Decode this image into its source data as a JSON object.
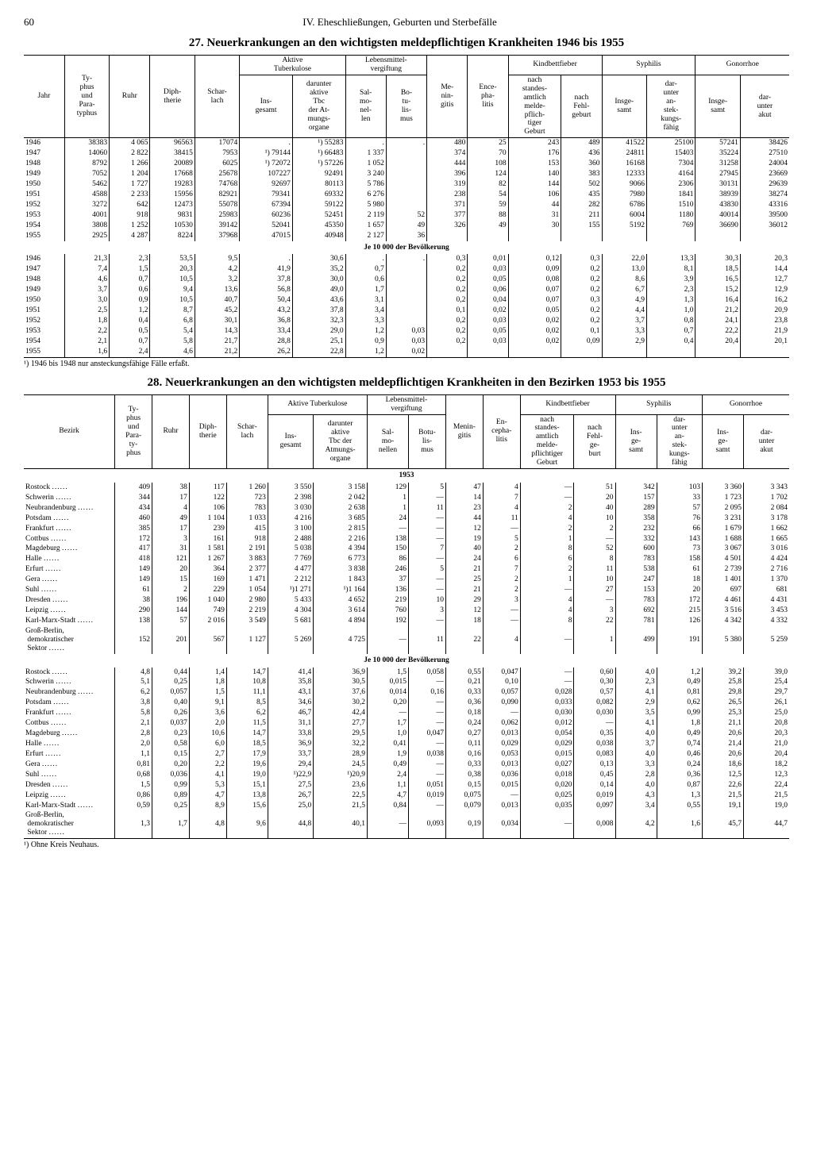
{
  "page_number": "60",
  "chapter": "IV. Eheschließungen, Geburten und Sterbefälle",
  "table27": {
    "title": "27. Neuerkrankungen an den wichtigsten meldepflichtigen Krankheiten 1946 bis 1955",
    "headers": {
      "jahr": "Jahr",
      "typhus": "Ty-\nphus\nund\nPara-\ntyphus",
      "ruhr": "Ruhr",
      "diph": "Diph-\ntherie",
      "schar": "Schar-\nlach",
      "tb_group": "Aktive\nTuberkulose",
      "tb_ins": "Ins-\ngesamt",
      "tb_dar": "darunter\naktive\nTbc\nder At-\nmungs-\norgane",
      "leb_group": "Lebensmittel-\nvergiftung",
      "salmo": "Sal-\nmo-\nnel-\nlen",
      "botu": "Bo-\ntu-\nlis-\nmus",
      "menin": "Me-\nnin-\ngitis",
      "ence": "Ence-\npha-\nlitis",
      "kind_group": "Kindbettfieber",
      "kind_nach": "nach\nstandes-\namtlich\nmelde-\npflich-\ntiger\nGeburt",
      "kind_fehl": "nach\nFehl-\ngeburt",
      "syph_group": "Syphilis",
      "syph_ins": "Insge-\nsamt",
      "syph_dar": "dar-\nunter\nan-\nstek-\nkungs-\nfähig",
      "gon_group": "Gonorrhoe",
      "gon_ins": "Insge-\nsamt",
      "gon_dar": "dar-\nunter\nakut"
    },
    "section_label": "Je 10 000 der Bevölkerung",
    "years": [
      "1946",
      "1947",
      "1948",
      "1949",
      "1950",
      "1951",
      "1952",
      "1953",
      "1954",
      "1955"
    ],
    "abs": [
      [
        "38383",
        "4 065",
        "96563",
        "17074",
        ".",
        "¹) 55283",
        ".",
        ".",
        "480",
        "25",
        "243",
        "489",
        "41522",
        "25100",
        "57241",
        "38426"
      ],
      [
        "14060",
        "2 822",
        "38415",
        "7953",
        "¹) 79144",
        "¹) 66483",
        "1 337",
        "",
        "374",
        "70",
        "176",
        "436",
        "24811",
        "15403",
        "35224",
        "27510"
      ],
      [
        "8792",
        "1 266",
        "20089",
        "6025",
        "¹) 72072",
        "¹) 57226",
        "1 052",
        "",
        "444",
        "108",
        "153",
        "360",
        "16168",
        "7304",
        "31258",
        "24004"
      ],
      [
        "7052",
        "1 204",
        "17668",
        "25678",
        "107227",
        "92491",
        "3 240",
        "",
        "396",
        "124",
        "140",
        "383",
        "12333",
        "4164",
        "27945",
        "23669"
      ],
      [
        "5462",
        "1 727",
        "19283",
        "74768",
        "92697",
        "80113",
        "5 786",
        "",
        "319",
        "82",
        "144",
        "502",
        "9066",
        "2306",
        "30131",
        "29639"
      ],
      [
        "4588",
        "2 233",
        "15956",
        "82921",
        "79341",
        "69332",
        "6 276",
        "",
        "238",
        "54",
        "106",
        "435",
        "7980",
        "1841",
        "38939",
        "38274"
      ],
      [
        "3272",
        "642",
        "12473",
        "55078",
        "67394",
        "59122",
        "5 980",
        "",
        "371",
        "59",
        "44",
        "282",
        "6786",
        "1510",
        "43830",
        "43316"
      ],
      [
        "4001",
        "918",
        "9831",
        "25983",
        "60236",
        "52451",
        "2 119",
        "52",
        "377",
        "88",
        "31",
        "211",
        "6004",
        "1180",
        "40014",
        "39500"
      ],
      [
        "3808",
        "1 252",
        "10530",
        "39142",
        "52041",
        "45350",
        "1 657",
        "49",
        "326",
        "49",
        "30",
        "155",
        "5192",
        "769",
        "36690",
        "36012"
      ],
      [
        "2925",
        "4 287",
        "8224",
        "37968",
        "47015",
        "40948",
        "2 127",
        "36",
        "",
        "",
        "",
        "",
        "",
        "",
        "",
        ""
      ]
    ],
    "rel": [
      [
        "21,3",
        "2,3",
        "53,5",
        "9,5",
        ".",
        "30,6",
        ".",
        ".",
        "0,3",
        "0,01",
        "0,12",
        "0,3",
        "22,0",
        "13,3",
        "30,3",
        "20,3"
      ],
      [
        "7,4",
        "1,5",
        "20,3",
        "4,2",
        "41,9",
        "35,2",
        "0,7",
        "",
        "0,2",
        "0,03",
        "0,09",
        "0,2",
        "13,0",
        "8,1",
        "18,5",
        "14,4"
      ],
      [
        "4,6",
        "0,7",
        "10,5",
        "3,2",
        "37,8",
        "30,0",
        "0,6",
        "",
        "0,2",
        "0,05",
        "0,08",
        "0,2",
        "8,6",
        "3,9",
        "16,5",
        "12,7"
      ],
      [
        "3,7",
        "0,6",
        "9,4",
        "13,6",
        "56,8",
        "49,0",
        "1,7",
        "",
        "0,2",
        "0,06",
        "0,07",
        "0,2",
        "6,7",
        "2,3",
        "15,2",
        "12,9"
      ],
      [
        "3,0",
        "0,9",
        "10,5",
        "40,7",
        "50,4",
        "43,6",
        "3,1",
        "",
        "0,2",
        "0,04",
        "0,07",
        "0,3",
        "4,9",
        "1,3",
        "16,4",
        "16,2"
      ],
      [
        "2,5",
        "1,2",
        "8,7",
        "45,2",
        "43,2",
        "37,8",
        "3,4",
        "",
        "0,1",
        "0,02",
        "0,05",
        "0,2",
        "4,4",
        "1,0",
        "21,2",
        "20,9"
      ],
      [
        "1,8",
        "0,4",
        "6,8",
        "30,1",
        "36,8",
        "32,3",
        "3,3",
        "",
        "0,2",
        "0,03",
        "0,02",
        "0,2",
        "3,7",
        "0,8",
        "24,1",
        "23,8"
      ],
      [
        "2,2",
        "0,5",
        "5,4",
        "14,3",
        "33,4",
        "29,0",
        "1,2",
        "0,03",
        "0,2",
        "0,05",
        "0,02",
        "0,1",
        "3,3",
        "0,7",
        "22,2",
        "21,9"
      ],
      [
        "2,1",
        "0,7",
        "5,8",
        "21,7",
        "28,8",
        "25,1",
        "0,9",
        "0,03",
        "0,2",
        "0,03",
        "0,02",
        "0,09",
        "2,9",
        "0,4",
        "20,4",
        "20,1"
      ],
      [
        "1,6",
        "2,4",
        "4,6",
        "21,2",
        "26,2",
        "22,8",
        "1,2",
        "0,02",
        "",
        "",
        "",
        "",
        "",
        "",
        "",
        ""
      ]
    ],
    "footnote": "¹) 1946 bis 1948 nur ansteckungsfähige Fälle erfaßt."
  },
  "table28": {
    "title": "28. Neuerkrankungen an den wichtigsten meldepflichtigen Krankheiten in den Bezirken 1953 bis 1955",
    "headers": {
      "bezirk": "Bezirk",
      "typhus": "Ty-\nphus\nund\nPara-\nty-\nphus",
      "ruhr": "Ruhr",
      "diph": "Diph-\ntherie",
      "schar": "Schar-\nlach",
      "tb_group": "Aktive Tuberkulose",
      "tb_ins": "Ins-\ngesamt",
      "tb_dar": "darunter\naktive\nTbc der\nAtmungs-\norgane",
      "leb_group": "Lebensmittel-\nvergiftung",
      "salmo": "Sal-\nmo-\nnellen",
      "botu": "Botu-\nlis-\nmus",
      "menin": "Menin-\ngitis",
      "ence": "En-\ncepha-\nlitis",
      "kind_group": "Kindbettfieber",
      "kind_nach": "nach\nstandes-\namtlich\nmelde-\npflichtiger\nGeburt",
      "kind_fehl": "nach\nFehl-\nge-\nburt",
      "syph_group": "Syphilis",
      "syph_ins": "Ins-\nge-\nsamt",
      "syph_dar": "dar-\nunter\nan-\nstek-\nkungs-\nfähig",
      "gon_group": "Gonorrhoe",
      "gon_ins": "Ins-\nge-\nsamt",
      "gon_dar": "dar-\nunter\nakut"
    },
    "year_label": "1953",
    "section_label": "Je 10 000 der Bevölkerung",
    "districts": [
      "Rostock",
      "Schwerin",
      "Neubrandenburg",
      "Potsdam",
      "Frankfurt",
      "Cottbus",
      "Magdeburg",
      "Halle",
      "Erfurt",
      "Gera",
      "Suhl",
      "Dresden",
      "Leipzig",
      "Karl-Marx-Stadt",
      "Groß-Berlin, demokratischer Sektor"
    ],
    "abs": [
      [
        "409",
        "38",
        "117",
        "1 260",
        "3 550",
        "3 158",
        "129",
        "5",
        "47",
        "4",
        "—",
        "51",
        "342",
        "103",
        "3 360",
        "3 343"
      ],
      [
        "344",
        "17",
        "122",
        "723",
        "2 398",
        "2 042",
        "1",
        "—",
        "14",
        "7",
        "—",
        "20",
        "157",
        "33",
        "1 723",
        "1 702"
      ],
      [
        "434",
        "4",
        "106",
        "783",
        "3 030",
        "2 638",
        "1",
        "11",
        "23",
        "4",
        "2",
        "40",
        "289",
        "57",
        "2 095",
        "2 084"
      ],
      [
        "460",
        "49",
        "1 104",
        "1 033",
        "4 216",
        "3 685",
        "24",
        "—",
        "44",
        "11",
        "4",
        "10",
        "358",
        "76",
        "3 231",
        "3 178"
      ],
      [
        "385",
        "17",
        "239",
        "415",
        "3 100",
        "2 815",
        "—",
        "—",
        "12",
        "—",
        "2",
        "2",
        "232",
        "66",
        "1 679",
        "1 662"
      ],
      [
        "172",
        "3",
        "161",
        "918",
        "2 488",
        "2 216",
        "138",
        "—",
        "19",
        "5",
        "1",
        "—",
        "332",
        "143",
        "1 688",
        "1 665"
      ],
      [
        "417",
        "31",
        "1 581",
        "2 191",
        "5 038",
        "4 394",
        "150",
        "7",
        "40",
        "2",
        "8",
        "52",
        "600",
        "73",
        "3 067",
        "3 016"
      ],
      [
        "418",
        "121",
        "1 267",
        "3 883",
        "7 769",
        "6 773",
        "86",
        "—",
        "24",
        "6",
        "6",
        "8",
        "783",
        "158",
        "4 501",
        "4 424"
      ],
      [
        "149",
        "20",
        "364",
        "2 377",
        "4 477",
        "3 838",
        "246",
        "5",
        "21",
        "7",
        "2",
        "11",
        "538",
        "61",
        "2 739",
        "2 716"
      ],
      [
        "149",
        "15",
        "169",
        "1 471",
        "2 212",
        "1 843",
        "37",
        "—",
        "25",
        "2",
        "1",
        "10",
        "247",
        "18",
        "1 401",
        "1 370"
      ],
      [
        "61",
        "2",
        "229",
        "1 054",
        "¹)1 271",
        "¹)1 164",
        "136",
        "—",
        "21",
        "2",
        "—",
        "27",
        "153",
        "20",
        "697",
        "681"
      ],
      [
        "38",
        "196",
        "1 040",
        "2 980",
        "5 433",
        "4 652",
        "219",
        "10",
        "29",
        "3",
        "4",
        "—",
        "783",
        "172",
        "4 461",
        "4 431"
      ],
      [
        "290",
        "144",
        "749",
        "2 219",
        "4 304",
        "3 614",
        "760",
        "3",
        "12",
        "—",
        "4",
        "3",
        "692",
        "215",
        "3 516",
        "3 453"
      ],
      [
        "138",
        "57",
        "2 016",
        "3 549",
        "5 681",
        "4 894",
        "192",
        "—",
        "18",
        "—",
        "8",
        "22",
        "781",
        "126",
        "4 342",
        "4 332"
      ],
      [
        "152",
        "201",
        "567",
        "1 127",
        "5 269",
        "4 725",
        "—",
        "11",
        "22",
        "4",
        "—",
        "1",
        "499",
        "191",
        "5 380",
        "5 259"
      ]
    ],
    "rel": [
      [
        "4,8",
        "0,44",
        "1,4",
        "14,7",
        "41,4",
        "36,9",
        "1,5",
        "0,058",
        "0,55",
        "0,047",
        "—",
        "0,60",
        "4,0",
        "1,2",
        "39,2",
        "39,0"
      ],
      [
        "5,1",
        "0,25",
        "1,8",
        "10,8",
        "35,8",
        "30,5",
        "0,015",
        "—",
        "0,21",
        "0,10",
        "—",
        "0,30",
        "2,3",
        "0,49",
        "25,8",
        "25,4"
      ],
      [
        "6,2",
        "0,057",
        "1,5",
        "11,1",
        "43,1",
        "37,6",
        "0,014",
        "0,16",
        "0,33",
        "0,057",
        "0,028",
        "0,57",
        "4,1",
        "0,81",
        "29,8",
        "29,7"
      ],
      [
        "3,8",
        "0,40",
        "9,1",
        "8,5",
        "34,6",
        "30,2",
        "0,20",
        "—",
        "0,36",
        "0,090",
        "0,033",
        "0,082",
        "2,9",
        "0,62",
        "26,5",
        "26,1"
      ],
      [
        "5,8",
        "0,26",
        "3,6",
        "6,2",
        "46,7",
        "42,4",
        "—",
        "—",
        "0,18",
        "—",
        "0,030",
        "0,030",
        "3,5",
        "0,99",
        "25,3",
        "25,0"
      ],
      [
        "2,1",
        "0,037",
        "2,0",
        "11,5",
        "31,1",
        "27,7",
        "1,7",
        "—",
        "0,24",
        "0,062",
        "0,012",
        "—",
        "4,1",
        "1,8",
        "21,1",
        "20,8"
      ],
      [
        "2,8",
        "0,23",
        "10,6",
        "14,7",
        "33,8",
        "29,5",
        "1,0",
        "0,047",
        "0,27",
        "0,013",
        "0,054",
        "0,35",
        "4,0",
        "0,49",
        "20,6",
        "20,3"
      ],
      [
        "2,0",
        "0,58",
        "6,0",
        "18,5",
        "36,9",
        "32,2",
        "0,41",
        "—",
        "0,11",
        "0,029",
        "0,029",
        "0,038",
        "3,7",
        "0,74",
        "21,4",
        "21,0"
      ],
      [
        "1,1",
        "0,15",
        "2,7",
        "17,9",
        "33,7",
        "28,9",
        "1,9",
        "0,038",
        "0,16",
        "0,053",
        "0,015",
        "0,083",
        "4,0",
        "0,46",
        "20,6",
        "20,4"
      ],
      [
        "0,81",
        "0,20",
        "2,2",
        "19,6",
        "29,4",
        "24,5",
        "0,49",
        "—",
        "0,33",
        "0,013",
        "0,027",
        "0,13",
        "3,3",
        "0,24",
        "18,6",
        "18,2"
      ],
      [
        "0,68",
        "0,036",
        "4,1",
        "19,0",
        "¹)22,9",
        "¹)20,9",
        "2,4",
        "—",
        "0,38",
        "0,036",
        "0,018",
        "0,45",
        "2,8",
        "0,36",
        "12,5",
        "12,3"
      ],
      [
        "1,5",
        "0,99",
        "5,3",
        "15,1",
        "27,5",
        "23,6",
        "1,1",
        "0,051",
        "0,15",
        "0,015",
        "0,020",
        "0,14",
        "4,0",
        "0,87",
        "22,6",
        "22,4"
      ],
      [
        "0,86",
        "0,89",
        "4,7",
        "13,8",
        "26,7",
        "22,5",
        "4,7",
        "0,019",
        "0,075",
        "—",
        "0,025",
        "0,019",
        "4,3",
        "1,3",
        "21,5",
        "21,5"
      ],
      [
        "0,59",
        "0,25",
        "8,9",
        "15,6",
        "25,0",
        "21,5",
        "0,84",
        "—",
        "0,079",
        "0,013",
        "0,035",
        "0,097",
        "3,4",
        "0,55",
        "19,1",
        "19,0"
      ],
      [
        "1,3",
        "1,7",
        "4,8",
        "9,6",
        "44,8",
        "40,1",
        "—",
        "0,093",
        "0,19",
        "0,034",
        "—",
        "0,008",
        "4,2",
        "1,6",
        "45,7",
        "44,7"
      ]
    ],
    "footnote": "¹) Ohne Kreis Neuhaus."
  }
}
